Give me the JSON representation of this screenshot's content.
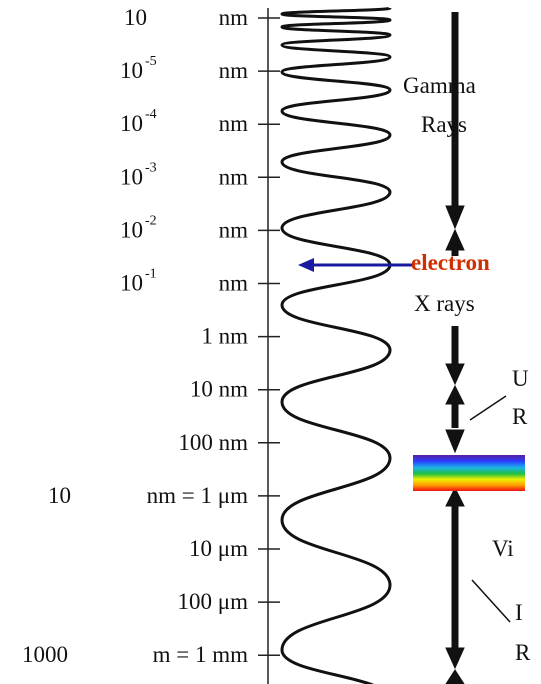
{
  "scale": [
    {
      "base": "10",
      "unit": "nm"
    },
    {
      "base": "10",
      "exp": "-5",
      "unit": "nm"
    },
    {
      "base": "10",
      "exp": "-4",
      "unit": "nm"
    },
    {
      "base": "10",
      "exp": "-3",
      "unit": "nm"
    },
    {
      "base": "10",
      "exp": "-2",
      "unit": "nm"
    },
    {
      "base": "10",
      "exp": "-1",
      "unit": "nm"
    },
    {
      "unit": "1 nm"
    },
    {
      "unit": "10 nm"
    },
    {
      "unit": "100 nm"
    },
    {
      "base": "10",
      "unit": "nm = 1 μm"
    },
    {
      "unit": "10 μm"
    },
    {
      "unit": "100 μm"
    },
    {
      "base": "1000",
      "unit": "m = 1 mm"
    }
  ],
  "bands": {
    "gamma_1": "Gamma",
    "gamma_2": "Rays",
    "electron": "electron",
    "xrays": "X rays",
    "uv_1": "U",
    "uv_2": "R",
    "visible": "Vi",
    "ir_1": "I",
    "ir_2": "R"
  }
}
